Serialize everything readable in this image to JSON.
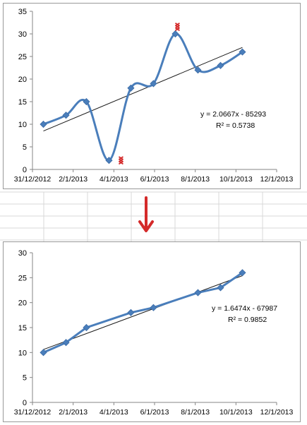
{
  "colors": {
    "series": "#4a7ebb",
    "trendline": "#1a1a1a",
    "axis": "#868686",
    "outlier": "#d42a2a",
    "arrow": "#d42a2a",
    "frame": "#999999",
    "sheet_grid": "#d9d9d9"
  },
  "icons": {
    "transition_arrow": "arrow-down-icon",
    "outlier_marker": "stacked-x-marker-icon"
  },
  "chart_data": [
    {
      "type": "line",
      "title": "",
      "xlabel": "",
      "ylabel": "",
      "smoothed": true,
      "x_ticks": [
        "31/12/2012",
        "2/1/2013",
        "4/1/2013",
        "6/1/2013",
        "8/1/2013",
        "10/1/2013",
        "12/1/2013"
      ],
      "y_ticks": [
        "0",
        "5",
        "10",
        "15",
        "20",
        "25",
        "30",
        "35"
      ],
      "xlim": [
        "2012-12-31",
        "2013-12-01"
      ],
      "ylim": [
        0,
        35
      ],
      "grid": false,
      "series": [
        {
          "x": [
            "2013-01-15",
            "2013-02-15",
            "2013-03-15",
            "2013-04-15",
            "2013-05-15",
            "2013-06-15",
            "2013-07-15",
            "2013-08-15",
            "2013-09-15",
            "2013-10-15"
          ],
          "y": [
            10,
            12,
            15,
            2,
            18,
            19,
            30,
            22,
            23,
            26
          ]
        }
      ],
      "outliers": [
        {
          "x": "2013-04-15",
          "y": 2
        },
        {
          "x": "2013-07-15",
          "y": 30
        }
      ],
      "trendline": {
        "equation": "y = 2.0667x - 85293",
        "r2_label": "R² = 0.5738",
        "slope_per_month": 2.0667,
        "y_at_first": 8.5,
        "y_at_last": 27
      }
    },
    {
      "type": "line",
      "title": "",
      "xlabel": "",
      "ylabel": "",
      "smoothed": false,
      "x_ticks": [
        "31/12/2012",
        "2/1/2013",
        "4/1/2013",
        "6/1/2013",
        "8/1/2013",
        "10/1/2013",
        "12/1/2013"
      ],
      "y_ticks": [
        "0",
        "5",
        "10",
        "15",
        "20",
        "25",
        "30"
      ],
      "xlim": [
        "2012-12-31",
        "2013-12-01"
      ],
      "ylim": [
        0,
        30
      ],
      "grid": false,
      "series": [
        {
          "x": [
            "2013-01-15",
            "2013-02-15",
            "2013-03-15",
            "2013-05-15",
            "2013-06-15",
            "2013-08-15",
            "2013-09-15",
            "2013-10-15"
          ],
          "y": [
            10,
            12,
            15,
            18,
            19,
            22,
            23,
            26
          ]
        }
      ],
      "trendline": {
        "equation": "y = 1.6474x - 67987",
        "r2_label": "R² = 0.9852",
        "slope_per_month": 1.6474,
        "y_at_first": 10.6,
        "y_at_last": 25.4
      }
    }
  ]
}
